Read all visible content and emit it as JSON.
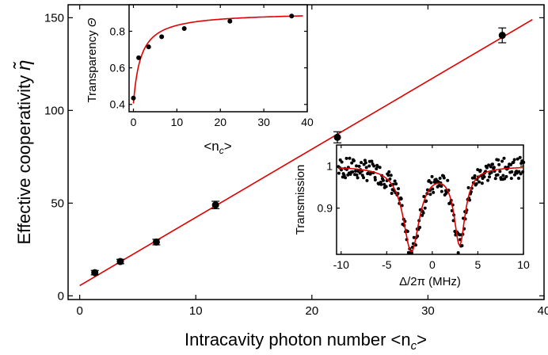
{
  "chart_data": [
    {
      "type": "scatter",
      "role": "main",
      "xlabel": "Intracavity photon number <n",
      "xlabel_sub": "c",
      "xlabel_close": ">",
      "ylabel": "Effective cooperativity ",
      "ylabel_symbol": "η̃",
      "xlim": [
        -1,
        40
      ],
      "ylim": [
        -2,
        157
      ],
      "xticks": [
        0,
        10,
        20,
        30,
        40
      ],
      "yticks": [
        0,
        50,
        100,
        150
      ],
      "grid": false,
      "series": [
        {
          "marker_color": "#000000",
          "x": [
            1.3,
            3.5,
            6.6,
            11.7,
            22.2,
            36.4
          ],
          "y": [
            12.5,
            18.5,
            29,
            49,
            85.5,
            140.5
          ],
          "yerr": [
            1.2,
            1.2,
            1.5,
            2,
            3,
            4
          ]
        }
      ],
      "fit": {
        "color": "#e00000",
        "x": [
          0,
          39
        ],
        "y": [
          5.5,
          149
        ]
      }
    },
    {
      "type": "scatter",
      "role": "inset-top-left",
      "xlabel": "<n",
      "xlabel_sub": "c",
      "xlabel_close": ">",
      "ylabel": "Transparency ",
      "ylabel_symbol": "Θ",
      "xlim": [
        -1,
        40
      ],
      "ylim": [
        0.36,
        0.945
      ],
      "xticks": [
        0,
        10,
        20,
        30,
        40
      ],
      "yticks": [
        0.4,
        0.6,
        0.8
      ],
      "grid": false,
      "series": [
        {
          "marker_color": "#000000",
          "x": [
            0,
            1.2,
            3.5,
            6.5,
            11.7,
            22.2,
            36.4
          ],
          "y": [
            0.435,
            0.655,
            0.715,
            0.77,
            0.815,
            0.855,
            0.883
          ]
        }
      ],
      "fit": {
        "color": "#e00000",
        "model": "saturating",
        "y0": 0.405,
        "amp": 0.5,
        "scale": 1.7
      }
    },
    {
      "type": "scatter",
      "role": "inset-bottom-right",
      "xlabel": "Δ/2π (MHz)",
      "ylabel": "Transmission",
      "xlim": [
        -10.5,
        10
      ],
      "ylim": [
        0.79,
        1.05
      ],
      "xticks": [
        -10,
        -5,
        0,
        5,
        10
      ],
      "yticks": [
        0.9,
        1.0
      ],
      "grid": false,
      "series": [
        {
          "marker_color": "#000000",
          "model_points": "noisy samples around fit",
          "n_points": 260
        }
      ],
      "fit": {
        "color": "#e00000",
        "model": "two-lorentzian-dips",
        "baseline": 1.0,
        "dips": [
          {
            "center": -2.3,
            "depth": 0.2,
            "width": 2.2
          },
          {
            "center": 3.0,
            "depth": 0.18,
            "width": 1.5
          }
        ]
      }
    }
  ]
}
